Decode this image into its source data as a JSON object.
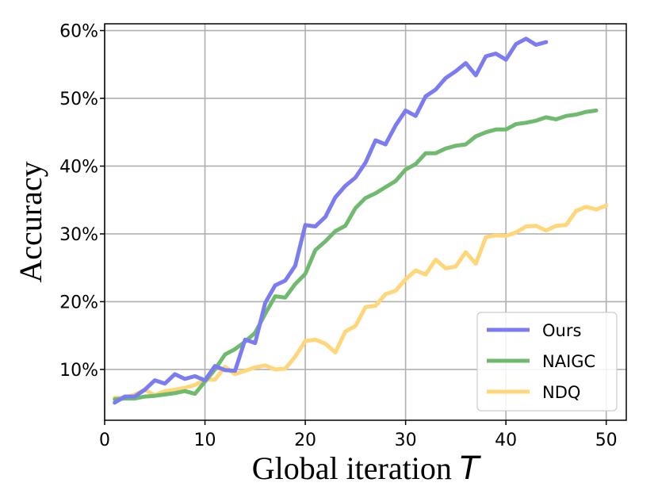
{
  "chart_data": {
    "type": "line",
    "xlabel": "Global iteration",
    "xlabel_var": "T",
    "ylabel": "Accuracy",
    "xlim": [
      0,
      52
    ],
    "ylim": [
      2.5,
      61
    ],
    "xticks": [
      0,
      10,
      20,
      30,
      40,
      50
    ],
    "yticks": [
      10,
      20,
      30,
      40,
      50,
      60
    ],
    "ytick_labels": [
      "10%",
      "20%",
      "30%",
      "40%",
      "50%",
      "60%"
    ],
    "grid": true,
    "legend_position": "lower-right",
    "series": [
      {
        "name": "Ours",
        "color": "#7b7bf2",
        "x": [
          1,
          2,
          3,
          4,
          5,
          6,
          7,
          8,
          9,
          10,
          11,
          12,
          13,
          14,
          15,
          16,
          17,
          18,
          19,
          20,
          21,
          22,
          23,
          24,
          25,
          26,
          27,
          28,
          29,
          30,
          31,
          32,
          33,
          34,
          35,
          36,
          37,
          38,
          39,
          40,
          41,
          42,
          43,
          44
        ],
        "y": [
          5.1,
          6.0,
          6.0,
          7.0,
          8.4,
          7.9,
          9.3,
          8.6,
          9.0,
          8.4,
          10.5,
          9.9,
          9.8,
          14.4,
          13.9,
          19.8,
          22.4,
          23.1,
          25.3,
          31.3,
          31.1,
          32.5,
          35.4,
          37.1,
          38.3,
          40.5,
          43.8,
          43.2,
          46.0,
          48.2,
          47.4,
          50.3,
          51.3,
          53.0,
          54.0,
          55.2,
          53.4,
          56.2,
          56.6,
          55.7,
          58.0,
          58.8,
          57.9,
          58.3
        ]
      },
      {
        "name": "NAIGC",
        "color": "#6fba6f",
        "x": [
          1,
          2,
          3,
          4,
          5,
          6,
          7,
          8,
          9,
          10,
          11,
          12,
          13,
          14,
          15,
          16,
          17,
          18,
          19,
          20,
          21,
          22,
          23,
          24,
          25,
          26,
          27,
          28,
          29,
          30,
          31,
          32,
          33,
          34,
          35,
          36,
          37,
          38,
          39,
          40,
          41,
          42,
          43,
          44,
          45,
          46,
          47,
          48,
          49
        ],
        "y": [
          5.6,
          5.7,
          5.7,
          6.0,
          6.1,
          6.3,
          6.5,
          6.8,
          6.4,
          8.2,
          10.0,
          12.2,
          13.0,
          14.1,
          15.4,
          18.2,
          20.8,
          20.6,
          22.6,
          24.1,
          27.6,
          28.9,
          30.4,
          31.2,
          33.8,
          35.3,
          36.0,
          36.9,
          37.8,
          39.5,
          40.3,
          41.9,
          41.9,
          42.6,
          43.0,
          43.2,
          44.4,
          45.0,
          45.4,
          45.4,
          46.2,
          46.4,
          46.7,
          47.2,
          46.9,
          47.4,
          47.6,
          48.0,
          48.2
        ]
      },
      {
        "name": "NDQ",
        "color": "#ffd77a",
        "x": [
          1,
          2,
          3,
          4,
          5,
          6,
          7,
          8,
          9,
          10,
          11,
          12,
          13,
          14,
          15,
          16,
          17,
          18,
          19,
          20,
          21,
          22,
          23,
          24,
          25,
          26,
          27,
          28,
          29,
          30,
          31,
          32,
          33,
          34,
          35,
          36,
          37,
          38,
          39,
          40,
          41,
          42,
          43,
          44,
          45,
          46,
          47,
          48,
          49,
          50
        ],
        "y": [
          5.8,
          5.8,
          6.3,
          7.0,
          6.2,
          6.8,
          7.0,
          7.3,
          7.7,
          8.5,
          8.5,
          10.4,
          9.3,
          9.8,
          10.3,
          10.6,
          10.0,
          10.1,
          11.9,
          14.2,
          14.4,
          13.8,
          12.5,
          15.6,
          16.4,
          19.2,
          19.4,
          21.1,
          21.6,
          23.3,
          24.6,
          24.0,
          26.2,
          24.9,
          25.2,
          27.3,
          25.6,
          29.5,
          29.8,
          29.7,
          30.2,
          31.1,
          31.2,
          30.5,
          31.2,
          31.3,
          33.4,
          34.0,
          33.6,
          34.2
        ]
      }
    ]
  }
}
